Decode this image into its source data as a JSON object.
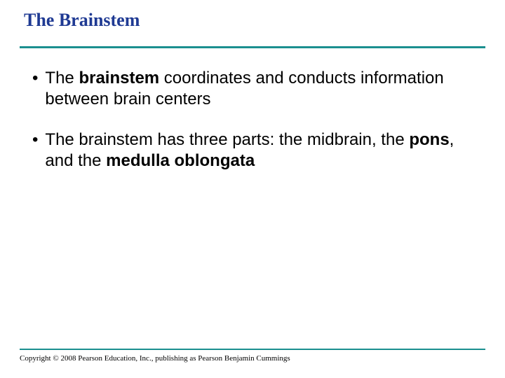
{
  "title": "The Brainstem",
  "accent_color": "#1b8f8f",
  "title_color": "#1f3a93",
  "body_text_color": "#000000",
  "background_color": "#ffffff",
  "title_fontsize": 26,
  "body_fontsize": 24,
  "bullets": [
    {
      "marker": "•",
      "runs": [
        {
          "t": "The ",
          "b": false
        },
        {
          "t": "brainstem",
          "b": true
        },
        {
          "t": " coordinates and conducts information between brain centers",
          "b": false
        }
      ]
    },
    {
      "marker": "•",
      "runs": [
        {
          "t": "The brainstem has three parts: the midbrain, the ",
          "b": false
        },
        {
          "t": "pons",
          "b": true
        },
        {
          "t": ", and the ",
          "b": false
        },
        {
          "t": "medulla oblongata",
          "b": true
        }
      ]
    }
  ],
  "copyright": "Copyright © 2008 Pearson Education, Inc., publishing as Pearson Benjamin Cummings"
}
